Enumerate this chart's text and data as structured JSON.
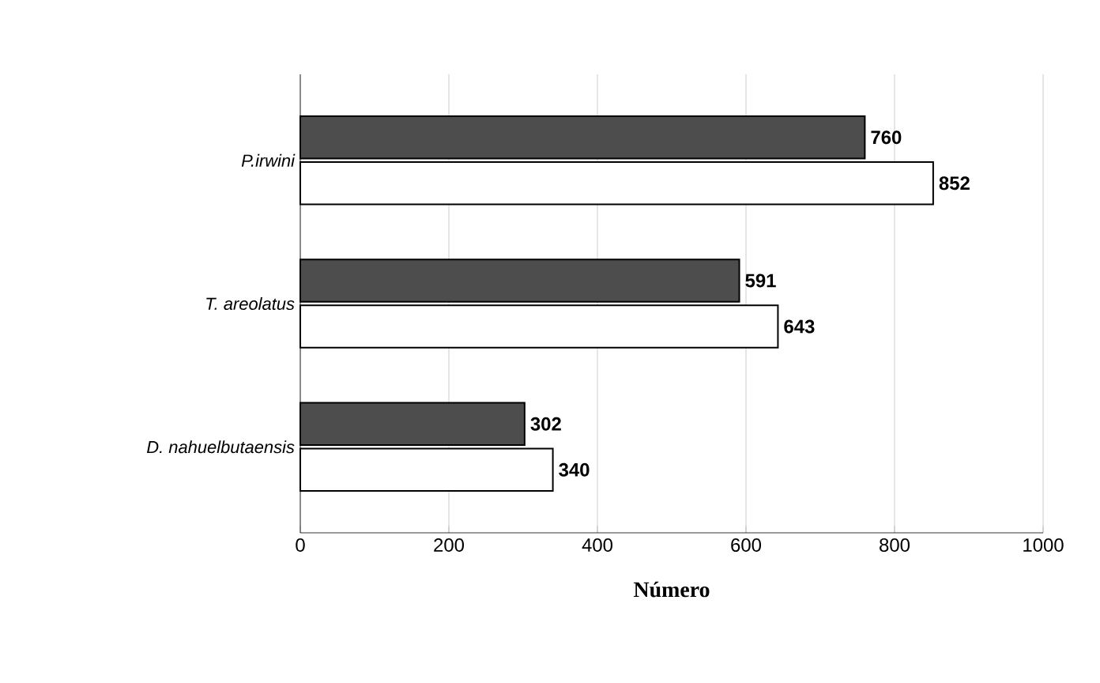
{
  "chart_data": {
    "type": "bar",
    "orientation": "horizontal",
    "xlabel": "Número",
    "categories": [
      "P.irwini",
      "T. areolatus",
      "D. nahuelbutaensis"
    ],
    "series": [
      {
        "color": "#4d4d4d",
        "values": [
          760,
          591,
          302
        ]
      },
      {
        "color": "#ffffff",
        "values": [
          852,
          643,
          340
        ]
      }
    ],
    "xlim": [
      0,
      1000
    ],
    "xticks": [
      0,
      200,
      400,
      600,
      800,
      1000
    ],
    "grid": "x",
    "data_labels": true
  }
}
